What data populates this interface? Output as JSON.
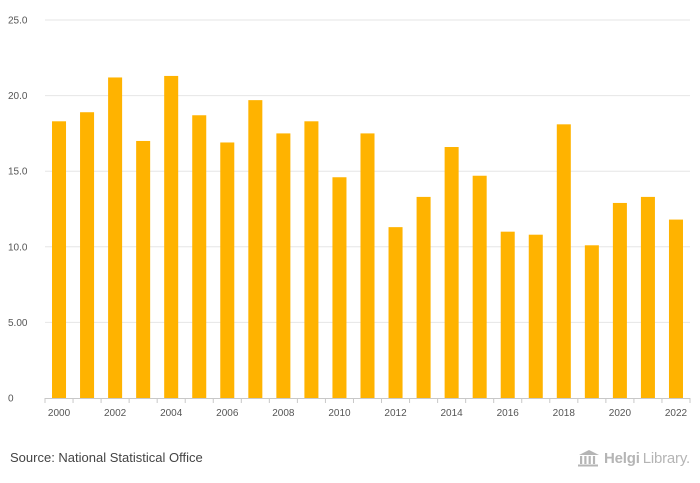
{
  "chart_data": {
    "type": "bar",
    "title": "",
    "xlabel": "",
    "ylabel": "",
    "categories": [
      "2000",
      "2001",
      "2002",
      "2003",
      "2004",
      "2005",
      "2006",
      "2007",
      "2008",
      "2009",
      "2010",
      "2011",
      "2012",
      "2013",
      "2014",
      "2015",
      "2016",
      "2017",
      "2018",
      "2019",
      "2020",
      "2021",
      "2022"
    ],
    "values": [
      18.3,
      18.9,
      21.2,
      17.0,
      21.3,
      18.7,
      16.9,
      19.7,
      17.5,
      18.3,
      14.6,
      17.5,
      11.3,
      13.3,
      16.6,
      14.7,
      11.0,
      10.8,
      18.1,
      10.1,
      12.9,
      13.3,
      11.8
    ],
    "ylim": [
      0,
      25
    ],
    "yticks": [
      "0",
      "5.00",
      "10.0",
      "15.0",
      "20.0",
      "25.0"
    ],
    "xtick_labels": [
      "2000",
      "2002",
      "2004",
      "2006",
      "2008",
      "2010",
      "2012",
      "2014",
      "2016",
      "2018",
      "2020",
      "2022"
    ],
    "bar_color": "#FFB300",
    "grid": true,
    "legend": "none"
  },
  "footer": {
    "source": "Source: National Statistical Office",
    "brand_name": "Helgi",
    "brand_suffix": "Library."
  },
  "colors": {
    "bar": "#FFB300",
    "grid": "#e6e6e6",
    "text": "#555555",
    "brand": "#b5b5b5"
  }
}
